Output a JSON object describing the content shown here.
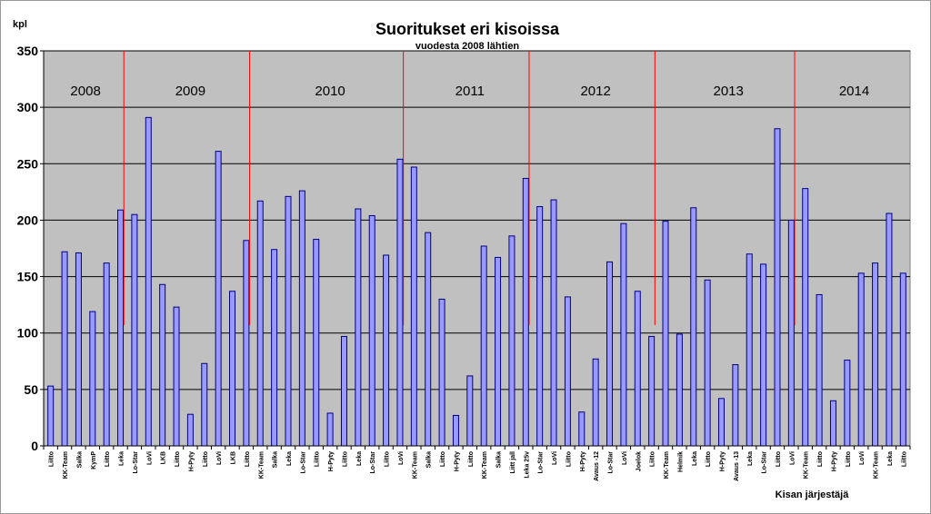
{
  "chart_data": {
    "type": "bar",
    "title": "Suoritukset eri kisoissa",
    "subtitle": "vuodesta 2008 lähtien",
    "ylabel": "kpl",
    "xlabel": "Kisan järjestäjä",
    "ylim": [
      0,
      350
    ],
    "yticks": [
      0,
      50,
      100,
      150,
      200,
      250,
      300,
      350
    ],
    "grid": true,
    "legend": "none",
    "colors": {
      "plot_bg": "#c0c0c0",
      "bar_fill": "#9999ff",
      "bar_stroke": "#000080",
      "year_marker": "#ff0000",
      "grid": "#000000"
    },
    "years": [
      {
        "label": "2008",
        "first_index": 0
      },
      {
        "label": "2009",
        "first_index": 6
      },
      {
        "label": "2010",
        "first_index": 15
      },
      {
        "label": "2011",
        "first_index": 26
      },
      {
        "label": "2012",
        "first_index": 35
      },
      {
        "label": "2013",
        "first_index": 44
      },
      {
        "label": "2014",
        "first_index": 54
      }
    ],
    "categories": [
      "Liitto",
      "KK-Team",
      "Salka",
      "KymP",
      "Liitto",
      "Leka",
      "Lo-Star",
      "LoVi",
      "LKB",
      "Liitto",
      "H-Pyty",
      "Liitto",
      "LoVi",
      "LKB",
      "Liitto",
      "KK-Team",
      "Salka",
      "Leka",
      "Lo-Star",
      "Liitto",
      "H-Pyty",
      "Liitto",
      "Leka",
      "Lo-Star",
      "Liitto",
      "LoVi",
      "KK-Team",
      "Salka",
      "Liitto",
      "H-Pyty",
      "Liitto",
      "KK-Team",
      "Salka",
      "Liitt jall",
      "Leka 25v",
      "Lo-Star",
      "LoVi",
      "Liitto",
      "H-Pyty",
      "Avaus -12",
      "Lo-Star",
      "LoVi",
      "Joelok",
      "Liitto",
      "KK-Team",
      "Helmik",
      "Leka",
      "Liitto",
      "H-Pyty",
      "Avaus -13",
      "Leka",
      "Lo-Star",
      "Liitto",
      "LoVi",
      "KK-Team",
      "Liitto",
      "H-Pyty",
      "Liitto",
      "LoVi",
      "KK-Team",
      "Leka",
      "Liitto"
    ],
    "values": [
      53,
      172,
      171,
      119,
      162,
      209,
      205,
      291,
      143,
      123,
      28,
      73,
      261,
      137,
      182,
      217,
      174,
      221,
      226,
      183,
      29,
      97,
      210,
      204,
      169,
      254,
      247,
      189,
      130,
      27,
      62,
      177,
      167,
      186,
      237,
      212,
      218,
      132,
      30,
      77,
      163,
      197,
      137,
      97,
      199,
      99,
      211,
      147,
      42,
      72,
      170,
      161,
      281,
      200,
      228,
      134,
      40,
      76,
      153,
      162,
      206,
      153
    ]
  }
}
